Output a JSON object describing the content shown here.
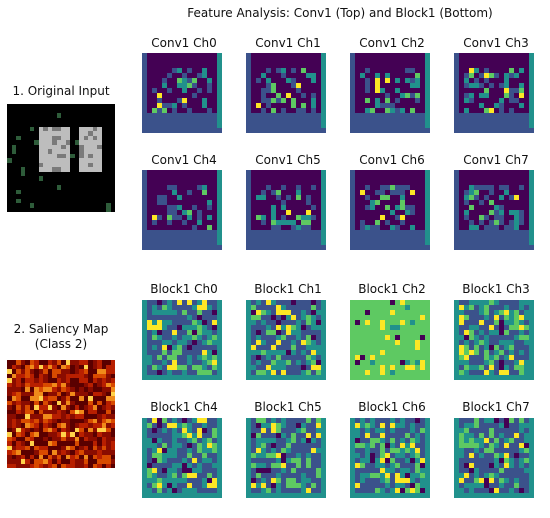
{
  "figure": {
    "title": "Feature Analysis: Conv1 (Top) and Block1 (Bottom)",
    "original_input_label": "1. Original Input",
    "saliency_label_line1": "2. Saliency Map",
    "saliency_label_line2": "(Class 2)"
  },
  "conv1_panels": [
    {
      "title": "Conv1 Ch0"
    },
    {
      "title": "Conv1 Ch1"
    },
    {
      "title": "Conv1 Ch2"
    },
    {
      "title": "Conv1 Ch3"
    },
    {
      "title": "Conv1 Ch4"
    },
    {
      "title": "Conv1 Ch5"
    },
    {
      "title": "Conv1 Ch6"
    },
    {
      "title": "Conv1 Ch7"
    }
  ],
  "block1_panels": [
    {
      "title": "Block1 Ch0"
    },
    {
      "title": "Block1 Ch1"
    },
    {
      "title": "Block1 Ch2"
    },
    {
      "title": "Block1 Ch3"
    },
    {
      "title": "Block1 Ch4"
    },
    {
      "title": "Block1 Ch5"
    },
    {
      "title": "Block1 Ch6"
    },
    {
      "title": "Block1 Ch7"
    }
  ],
  "colors": {
    "viridis_dark": "#440154",
    "viridis_blue": "#3b528b",
    "viridis_teal": "#21918c",
    "viridis_green": "#5ec962",
    "viridis_yellow": "#fde725",
    "input_bg": "#000000",
    "input_fg": "#bdbdbd",
    "heat_dark": "#5a0000",
    "heat_bright": "#ffd24a"
  }
}
